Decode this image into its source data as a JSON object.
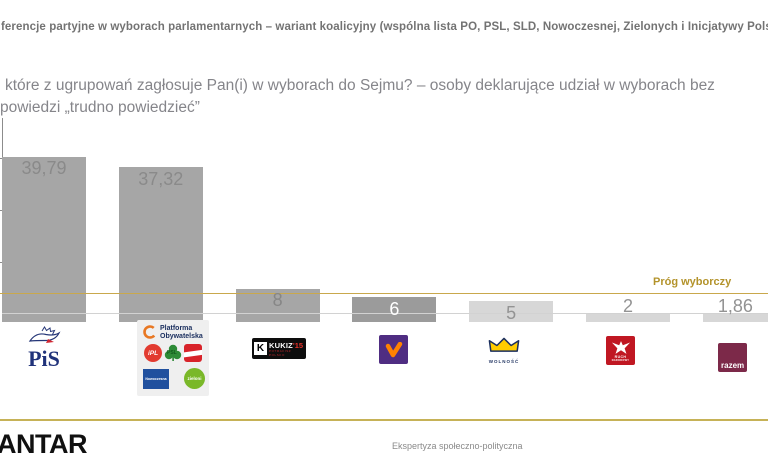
{
  "title": "ferencje partyjne w wyborach parlamentarnych – wariant koalicyjny (wspólna lista PO, PSL, SLD, Nowoczesnej, Zielonych i Inicjatywy Polsk",
  "question": {
    "line1": "które z ugrupowań zagłosuje Pan(i) w wyborach do Sejmu? – osoby deklarujące udział w wyborach bez",
    "line2": "powiedzi „trudno powiedzieć”"
  },
  "chart_data": {
    "type": "bar",
    "categories": [
      "PiS",
      "Koalicja PO, PSL, SLD, Nowoczesna, Zieloni, Inicjatywa Polska",
      "Kukiz'15",
      "Wiosna",
      "Wolność",
      "Ruch Narodowy",
      "Razem"
    ],
    "values": [
      39.79,
      37.32,
      8,
      6,
      5,
      2,
      1.86
    ],
    "value_labels": [
      "39,79",
      "37,32",
      "8",
      "6",
      "5",
      "2",
      "1,86"
    ],
    "bar_colors": [
      "#a6a6a6",
      "#a6a6a6",
      "#a6a6a6",
      "#9b9b9b",
      "#d7d7d7",
      "#d7d7d7",
      "#d7d7d7"
    ],
    "label_colors": [
      "#8a8a8a",
      "#8a8a8a",
      "#868686",
      "#ffffff",
      "#939393",
      "#939393",
      "#939393"
    ],
    "threshold": {
      "label": "Próg wyborczy",
      "value": 5,
      "color": "#c9a84c"
    },
    "title": "",
    "xlabel": "",
    "ylabel": "",
    "ylim": [
      0,
      45
    ],
    "grid": false,
    "legend": "none (party logos below bars)"
  },
  "threshold_label": "Próg wyborczy",
  "logos": {
    "pis_text": "PiS",
    "po_line1": "Platforma",
    "po_line2": "Obywatelska",
    "ipl_text": "iPL",
    "psl_text": "PSL",
    "nowoczesna_text": "Nowoczesna",
    "zieloni_text": "zieloni",
    "kukiz_k": "K",
    "kukiz_name": "KUKIZ",
    "kukiz_15": "'15",
    "kukiz_sub": "POTRAFISZ POLSKO",
    "wolnosc_text": "WOLNOŚĆ",
    "ruch_line1": "RUCH",
    "ruch_line2": "NARODOWY",
    "razem_text": "razem"
  },
  "footer": {
    "brand": "ANTAR",
    "caption": "Ekspertyza społeczno-polityczna"
  },
  "colors": {
    "title_gray": "#737373",
    "question_gray": "#85858a",
    "bar_medium": "#a6a6a6",
    "bar_light": "#d7d7d7",
    "gold_line": "#c9a84c",
    "gold_footer_line": "#c6b257",
    "pis_navy": "#20327a",
    "wiosna_purple": "#4f2d82",
    "wiosna_orange": "#ff8200",
    "wolnosc_yellow": "#ffcc00",
    "ruch_red": "#c01722",
    "razem_maroon": "#7c2949"
  }
}
